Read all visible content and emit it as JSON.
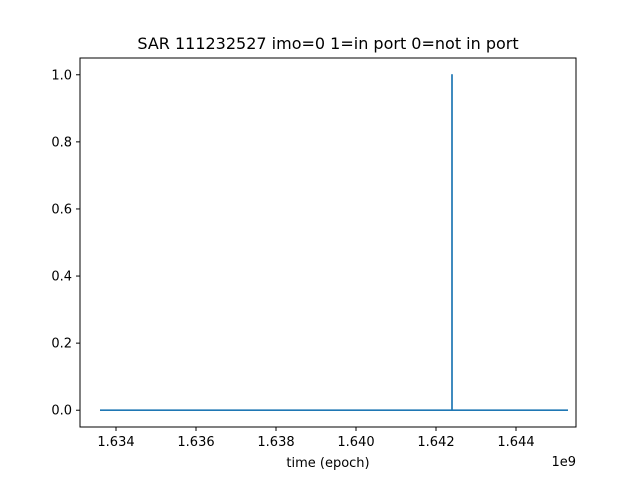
{
  "chart_data": {
    "type": "line",
    "title": "SAR 111232527 imo=0 1=in port 0=not in port",
    "xlabel": "time (epoch)",
    "ylabel": "",
    "x_offset_label": "1e9",
    "xlim": [
      1.6331,
      1.6455
    ],
    "ylim": [
      -0.05,
      1.05
    ],
    "x_ticks": [
      1.634,
      1.636,
      1.638,
      1.64,
      1.642,
      1.644
    ],
    "x_tick_labels": [
      "1.634",
      "1.636",
      "1.638",
      "1.640",
      "1.642",
      "1.644"
    ],
    "y_ticks": [
      0.0,
      0.2,
      0.4,
      0.6,
      0.8,
      1.0
    ],
    "y_tick_labels": [
      "0.0",
      "0.2",
      "0.4",
      "0.6",
      "0.8",
      "1.0"
    ],
    "grid": false,
    "series": [
      {
        "color": "#1f77b4",
        "x": [
          1.6336,
          1.6424,
          1.6424,
          1.6424,
          1.6453
        ],
        "y": [
          0,
          0,
          1,
          0,
          0
        ]
      }
    ]
  }
}
